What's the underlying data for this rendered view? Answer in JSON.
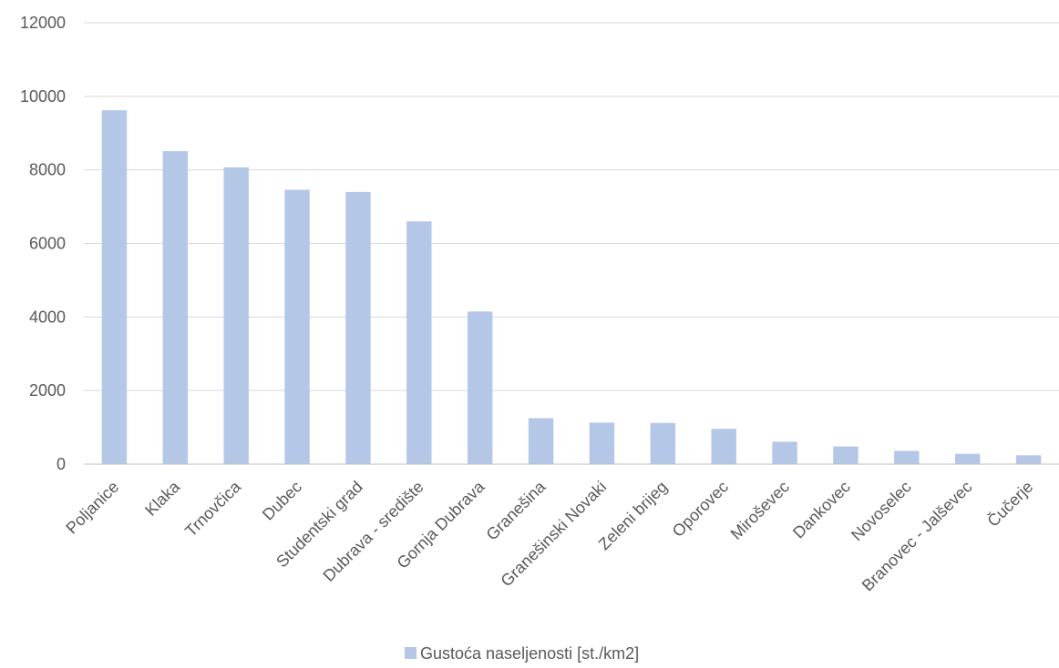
{
  "chart_data": {
    "type": "bar",
    "categories": [
      "Poljanice",
      "Klaka",
      "Trnovčica",
      "Dubec",
      "Studentski grad",
      "Dubrava - središte",
      "Gornja Dubrava",
      "Granešina",
      "Granešinski Novaki",
      "Zeleni brijeg",
      "Oporovec",
      "Miroševec",
      "Dankovec",
      "Novoselec",
      "Branovec - Jalševec",
      "Čučerje"
    ],
    "series": [
      {
        "name": "Gustoća naseljenosti [st./km2]",
        "values": [
          9620,
          8510,
          8070,
          7460,
          7400,
          6600,
          4150,
          1250,
          1130,
          1120,
          960,
          610,
          480,
          360,
          280,
          240
        ]
      }
    ],
    "ylim": [
      0,
      12000
    ],
    "yticks": [
      0,
      2000,
      4000,
      6000,
      8000,
      10000,
      12000
    ],
    "ytick_labels": [
      "0",
      "2000",
      "4000",
      "6000",
      "8000",
      "10000",
      "12000"
    ],
    "grid": true,
    "legend_position": "bottom",
    "colors": {
      "bar": "#b4c7e7",
      "grid": "#d9d9d9",
      "axis": "#bfbfbf",
      "text": "#595959"
    }
  }
}
